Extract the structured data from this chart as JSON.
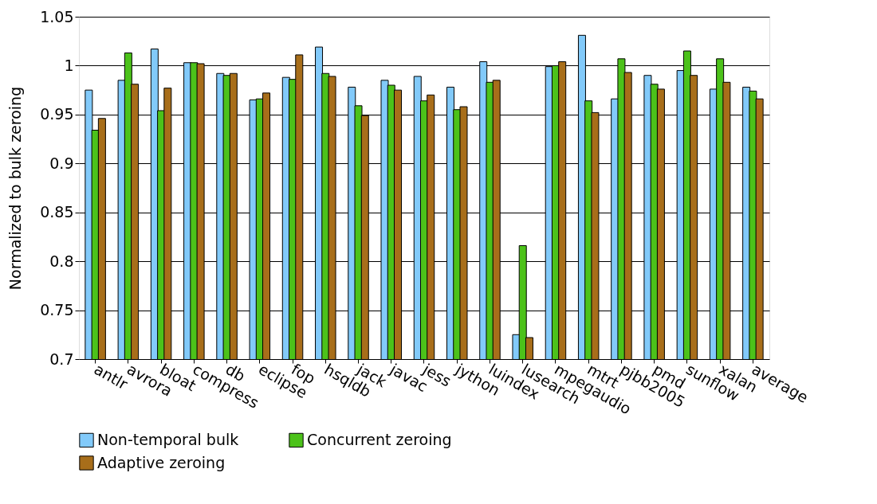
{
  "chart_data": {
    "type": "bar",
    "ylabel": "Normalized to bulk zeroing",
    "categories": [
      "antlr",
      "avrora",
      "bloat",
      "compress",
      "db",
      "eclipse",
      "fop",
      "hsqldb",
      "jack",
      "javac",
      "jess",
      "jython",
      "luindex",
      "lusearch",
      "mpegaudio",
      "mtrt",
      "pjbb2005",
      "pmd",
      "sunflow",
      "xalan",
      "average"
    ],
    "series": [
      {
        "name": "Non-temporal bulk",
        "color": "#82cafa",
        "values": [
          0.975,
          0.985,
          1.017,
          1.003,
          0.992,
          0.965,
          0.988,
          1.019,
          0.978,
          0.985,
          0.989,
          0.978,
          1.004,
          0.725,
          0.999,
          1.031,
          0.966,
          0.99,
          0.995,
          0.976,
          0.978
        ]
      },
      {
        "name": "Concurrent zeroing",
        "color": "#4cc21a",
        "values": [
          0.934,
          1.013,
          0.954,
          1.003,
          0.99,
          0.966,
          0.986,
          0.992,
          0.959,
          0.98,
          0.964,
          0.955,
          0.983,
          0.816,
          1.0,
          0.964,
          1.007,
          0.981,
          1.015,
          1.007,
          0.974
        ]
      },
      {
        "name": "Adaptive zeroing",
        "color": "#a86e1a",
        "values": [
          0.946,
          0.981,
          0.977,
          1.002,
          0.992,
          0.972,
          1.011,
          0.989,
          0.949,
          0.975,
          0.97,
          0.958,
          0.985,
          0.722,
          1.004,
          0.952,
          0.993,
          0.976,
          0.99,
          0.983,
          0.966
        ]
      }
    ],
    "ylim": [
      0.7,
      1.05
    ],
    "yticks": [
      0.7,
      0.75,
      0.8,
      0.85,
      0.9,
      0.95,
      1,
      1.05
    ],
    "grid": "y",
    "legend": "bottom"
  }
}
